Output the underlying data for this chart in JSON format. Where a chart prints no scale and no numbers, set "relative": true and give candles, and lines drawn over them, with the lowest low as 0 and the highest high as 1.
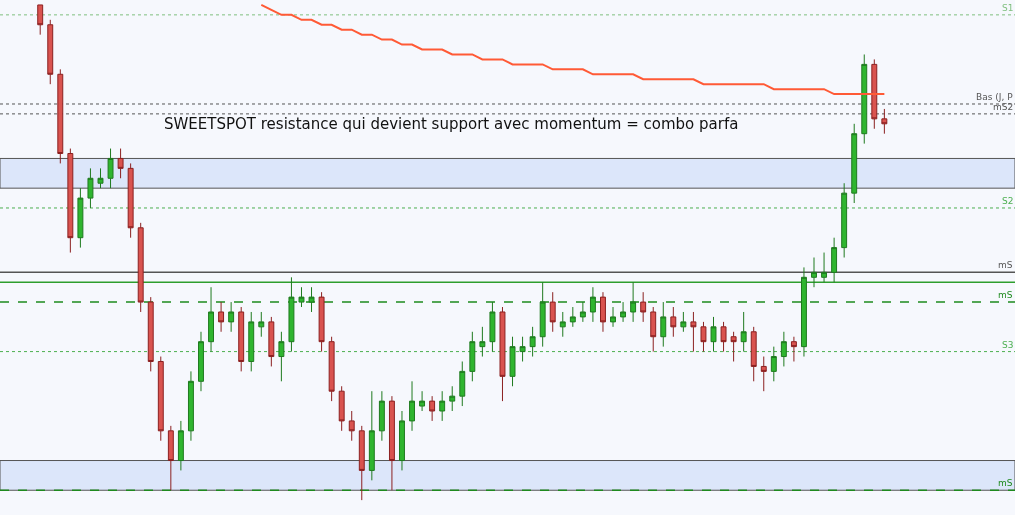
{
  "chart_data": {
    "type": "candlestick",
    "relative": true,
    "categories": [
      null,
      null,
      null,
      null,
      null,
      null,
      null,
      null,
      null,
      null,
      null,
      null,
      null,
      null,
      null,
      null,
      null,
      null,
      null,
      null,
      null,
      null,
      null,
      null,
      null,
      null,
      null,
      null,
      null,
      null,
      null,
      null,
      null,
      null,
      null,
      null,
      null,
      null,
      null,
      null,
      null,
      null,
      null,
      null,
      null,
      null,
      null,
      null,
      null,
      null,
      null,
      null,
      null,
      null,
      null,
      null,
      null,
      null,
      null,
      null,
      null,
      null,
      null,
      null,
      null,
      null,
      null,
      null,
      null,
      null,
      null,
      null,
      null,
      null,
      null,
      null,
      null,
      null,
      null,
      null,
      null,
      null,
      null,
      null,
      null
    ],
    "ohlc": [
      [
        1.0,
        1.0,
        0.94,
        0.96
      ],
      [
        0.96,
        0.97,
        0.84,
        0.86
      ],
      [
        0.86,
        0.87,
        0.68,
        0.7
      ],
      [
        0.7,
        0.71,
        0.5,
        0.53
      ],
      [
        0.53,
        0.63,
        0.51,
        0.61
      ],
      [
        0.61,
        0.67,
        0.59,
        0.65
      ],
      [
        0.64,
        0.67,
        0.63,
        0.65
      ],
      [
        0.65,
        0.71,
        0.63,
        0.69
      ],
      [
        0.69,
        0.71,
        0.65,
        0.67
      ],
      [
        0.67,
        0.68,
        0.53,
        0.55
      ],
      [
        0.55,
        0.56,
        0.38,
        0.4
      ],
      [
        0.4,
        0.41,
        0.26,
        0.28
      ],
      [
        0.28,
        0.29,
        0.12,
        0.14
      ],
      [
        0.14,
        0.15,
        0.02,
        0.08
      ],
      [
        0.08,
        0.16,
        0.06,
        0.14
      ],
      [
        0.14,
        0.26,
        0.12,
        0.24
      ],
      [
        0.24,
        0.34,
        0.22,
        0.32
      ],
      [
        0.32,
        0.43,
        0.3,
        0.38
      ],
      [
        0.38,
        0.4,
        0.34,
        0.36
      ],
      [
        0.36,
        0.4,
        0.34,
        0.38
      ],
      [
        0.38,
        0.39,
        0.26,
        0.28
      ],
      [
        0.28,
        0.38,
        0.26,
        0.36
      ],
      [
        0.35,
        0.38,
        0.33,
        0.36
      ],
      [
        0.36,
        0.37,
        0.27,
        0.29
      ],
      [
        0.29,
        0.34,
        0.24,
        0.32
      ],
      [
        0.32,
        0.45,
        0.3,
        0.41
      ],
      [
        0.4,
        0.43,
        0.39,
        0.41
      ],
      [
        0.4,
        0.43,
        0.38,
        0.41
      ],
      [
        0.41,
        0.42,
        0.3,
        0.32
      ],
      [
        0.32,
        0.33,
        0.2,
        0.22
      ],
      [
        0.22,
        0.23,
        0.14,
        0.16
      ],
      [
        0.16,
        0.18,
        0.12,
        0.14
      ],
      [
        0.14,
        0.15,
        0.0,
        0.06
      ],
      [
        0.06,
        0.22,
        0.04,
        0.14
      ],
      [
        0.14,
        0.22,
        0.12,
        0.2
      ],
      [
        0.2,
        0.21,
        0.02,
        0.08
      ],
      [
        0.08,
        0.18,
        0.06,
        0.16
      ],
      [
        0.16,
        0.24,
        0.14,
        0.2
      ],
      [
        0.19,
        0.22,
        0.18,
        0.2
      ],
      [
        0.2,
        0.21,
        0.16,
        0.18
      ],
      [
        0.18,
        0.22,
        0.16,
        0.2
      ],
      [
        0.2,
        0.23,
        0.18,
        0.21
      ],
      [
        0.21,
        0.28,
        0.19,
        0.26
      ],
      [
        0.26,
        0.34,
        0.24,
        0.32
      ],
      [
        0.31,
        0.35,
        0.29,
        0.32
      ],
      [
        0.32,
        0.4,
        0.3,
        0.38
      ],
      [
        0.38,
        0.39,
        0.2,
        0.25
      ],
      [
        0.25,
        0.33,
        0.23,
        0.31
      ],
      [
        0.3,
        0.33,
        0.28,
        0.31
      ],
      [
        0.31,
        0.35,
        0.29,
        0.33
      ],
      [
        0.33,
        0.44,
        0.31,
        0.4
      ],
      [
        0.4,
        0.42,
        0.34,
        0.36
      ],
      [
        0.35,
        0.38,
        0.33,
        0.36
      ],
      [
        0.36,
        0.39,
        0.35,
        0.37
      ],
      [
        0.37,
        0.4,
        0.36,
        0.38
      ],
      [
        0.38,
        0.43,
        0.36,
        0.41
      ],
      [
        0.41,
        0.42,
        0.34,
        0.36
      ],
      [
        0.36,
        0.39,
        0.35,
        0.37
      ],
      [
        0.37,
        0.4,
        0.36,
        0.38
      ],
      [
        0.38,
        0.44,
        0.36,
        0.4
      ],
      [
        0.4,
        0.42,
        0.36,
        0.38
      ],
      [
        0.38,
        0.39,
        0.3,
        0.33
      ],
      [
        0.33,
        0.4,
        0.31,
        0.37
      ],
      [
        0.37,
        0.39,
        0.33,
        0.35
      ],
      [
        0.35,
        0.38,
        0.34,
        0.36
      ],
      [
        0.36,
        0.38,
        0.3,
        0.35
      ],
      [
        0.35,
        0.36,
        0.3,
        0.32
      ],
      [
        0.32,
        0.37,
        0.3,
        0.35
      ],
      [
        0.35,
        0.36,
        0.3,
        0.32
      ],
      [
        0.33,
        0.34,
        0.28,
        0.32
      ],
      [
        0.32,
        0.38,
        0.3,
        0.34
      ],
      [
        0.34,
        0.35,
        0.24,
        0.27
      ],
      [
        0.27,
        0.29,
        0.22,
        0.26
      ],
      [
        0.26,
        0.31,
        0.24,
        0.29
      ],
      [
        0.29,
        0.34,
        0.27,
        0.32
      ],
      [
        0.32,
        0.33,
        0.28,
        0.31
      ],
      [
        0.31,
        0.47,
        0.29,
        0.45
      ],
      [
        0.45,
        0.49,
        0.43,
        0.46
      ],
      [
        0.45,
        0.5,
        0.44,
        0.46
      ],
      [
        0.46,
        0.53,
        0.44,
        0.51
      ],
      [
        0.51,
        0.64,
        0.49,
        0.62
      ],
      [
        0.62,
        0.76,
        0.6,
        0.74
      ],
      [
        0.74,
        0.9,
        0.72,
        0.88
      ],
      [
        0.88,
        0.89,
        0.75,
        0.77
      ],
      [
        0.77,
        0.79,
        0.74,
        0.76
      ]
    ],
    "series": [
      {
        "type": "line",
        "color": "#ff5a36",
        "values": [
          null,
          null,
          null,
          null,
          null,
          null,
          null,
          null,
          null,
          null,
          null,
          null,
          null,
          null,
          null,
          null,
          null,
          null,
          null,
          null,
          null,
          null,
          1.0,
          0.99,
          0.98,
          0.98,
          0.97,
          0.97,
          0.96,
          0.96,
          0.95,
          0.95,
          0.94,
          0.94,
          0.93,
          0.93,
          0.92,
          0.92,
          0.91,
          0.91,
          0.91,
          0.9,
          0.9,
          0.9,
          0.89,
          0.89,
          0.89,
          0.88,
          0.88,
          0.88,
          0.88,
          0.87,
          0.87,
          0.87,
          0.87,
          0.86,
          0.86,
          0.86,
          0.86,
          0.86,
          0.85,
          0.85,
          0.85,
          0.85,
          0.85,
          0.85,
          0.84,
          0.84,
          0.84,
          0.84,
          0.84,
          0.84,
          0.84,
          0.83,
          0.83,
          0.83,
          0.83,
          0.83,
          0.83,
          0.82,
          0.82,
          0.82,
          0.82,
          0.82,
          0.82
        ]
      }
    ],
    "ref_lines": [
      {
        "axis": "y",
        "value": 0.98,
        "label": "S1",
        "color": "#7fbf7f",
        "line_style": "dotted"
      },
      {
        "axis": "y",
        "value": 0.8,
        "label": "Bas (J, P",
        "color": "#555555",
        "line_style": "dotted"
      },
      {
        "axis": "y",
        "value": 0.78,
        "label": "mS2",
        "color": "#555555",
        "line_style": "dotted"
      },
      {
        "axis": "y",
        "value": 0.59,
        "label": "S2",
        "color": "#4caf50",
        "line_style": "dotted"
      },
      {
        "axis": "y",
        "value": 0.46,
        "label": "mS",
        "color": "#555555",
        "line_style": "solid"
      },
      {
        "axis": "y",
        "value": 0.44,
        "color": "#2e9e2e",
        "line_style": "solid"
      },
      {
        "axis": "y",
        "value": 0.4,
        "label": "mS",
        "color": "#1e8a1e",
        "line_style": "dashed"
      },
      {
        "axis": "y",
        "value": 0.3,
        "label": "S3",
        "color": "#4caf50",
        "line_style": "dotted"
      },
      {
        "axis": "y",
        "value": 0.02,
        "label": "mS",
        "color": "#1e8a1e",
        "line_style": "dashed"
      }
    ],
    "bands": [
      {
        "axis": "y",
        "from": 0.63,
        "to": 0.69,
        "color": "#dce6fa"
      },
      {
        "axis": "y",
        "from": 0.02,
        "to": 0.08,
        "color": "#dce6fa"
      }
    ],
    "annotations": [
      "SWEETSPOT resistance qui devient support avec momentum = combo parfa"
    ]
  }
}
